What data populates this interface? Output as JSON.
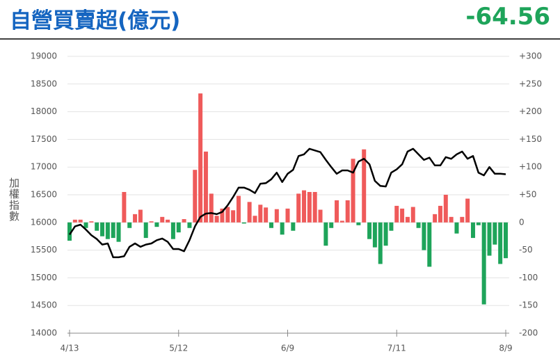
{
  "chart_data": {
    "type": "combo",
    "title": "自營買賣超(億元)",
    "headline": "-64.56",
    "ylabel": "加權指數",
    "categories": [
      "4/13",
      null,
      null,
      null,
      null,
      null,
      null,
      null,
      null,
      null,
      null,
      null,
      null,
      null,
      null,
      null,
      null,
      null,
      null,
      null,
      "5/12",
      null,
      null,
      null,
      null,
      null,
      null,
      null,
      null,
      null,
      null,
      null,
      null,
      null,
      null,
      null,
      null,
      null,
      null,
      null,
      "6/9",
      null,
      null,
      null,
      null,
      null,
      null,
      null,
      null,
      null,
      null,
      null,
      null,
      null,
      null,
      null,
      null,
      null,
      null,
      null,
      "7/11",
      null,
      null,
      null,
      null,
      null,
      null,
      null,
      null,
      null,
      null,
      null,
      null,
      null,
      null,
      null,
      null,
      null,
      null,
      null,
      "8/9"
    ],
    "series": [
      {
        "type": "bar",
        "axis": "y2",
        "color": "#ef5a5a",
        "negative_color": "#1ea45a",
        "values": [
          -33,
          5,
          5,
          -10,
          2,
          -15,
          -25,
          -30,
          -28,
          -35,
          55,
          -10,
          15,
          23,
          -28,
          2,
          -8,
          10,
          5,
          -30,
          -18,
          6,
          -10,
          95,
          233,
          128,
          52,
          12,
          25,
          28,
          22,
          48,
          -2,
          37,
          12,
          32,
          27,
          -10,
          24,
          -22,
          25,
          -15,
          52,
          58,
          55,
          55,
          23,
          -42,
          -10,
          40,
          3,
          40,
          115,
          -5,
          132,
          -30,
          -45,
          -75,
          -42,
          -15,
          30,
          25,
          10,
          28,
          -10,
          -50,
          -80,
          15,
          30,
          50,
          10,
          -20,
          10,
          43,
          -28,
          -5,
          -148,
          -60,
          -40,
          -75,
          -64.56
        ]
      },
      {
        "type": "line",
        "axis": "y",
        "color": "#000000",
        "values": [
          15780,
          15930,
          15960,
          15870,
          15770,
          15700,
          15600,
          15620,
          15370,
          15370,
          15390,
          15560,
          15620,
          15560,
          15600,
          15620,
          15680,
          15710,
          15650,
          15520,
          15520,
          15480,
          15680,
          15930,
          16100,
          16160,
          16170,
          16150,
          16190,
          16310,
          16460,
          16630,
          16630,
          16590,
          16530,
          16700,
          16710,
          16780,
          16900,
          16730,
          16880,
          16950,
          17200,
          17230,
          17330,
          17300,
          17270,
          17130,
          17000,
          16880,
          16940,
          16940,
          16900,
          17100,
          17150,
          17050,
          16750,
          16660,
          16650,
          16900,
          16960,
          17050,
          17280,
          17330,
          17230,
          17130,
          17170,
          17030,
          17030,
          17180,
          17150,
          17230,
          17280,
          17150,
          17200,
          16900,
          16850,
          17000,
          16880,
          16880,
          16870
        ]
      }
    ],
    "ylim": [
      14000,
      19000
    ],
    "yticks": [
      14000,
      14500,
      15000,
      15500,
      16000,
      16500,
      17000,
      17500,
      18000,
      18500,
      19000
    ],
    "y2lim": [
      -200,
      300
    ],
    "y2ticks": [
      -200,
      -150,
      -100,
      -50,
      0,
      {
        "value": 50,
        "label": "+50"
      },
      {
        "value": 100,
        "label": "+100"
      },
      {
        "value": 150,
        "label": "+150"
      },
      {
        "value": 200,
        "label": "+200"
      },
      {
        "value": 250,
        "label": "+250"
      },
      {
        "value": 300,
        "label": "+300"
      }
    ],
    "grid": true
  }
}
